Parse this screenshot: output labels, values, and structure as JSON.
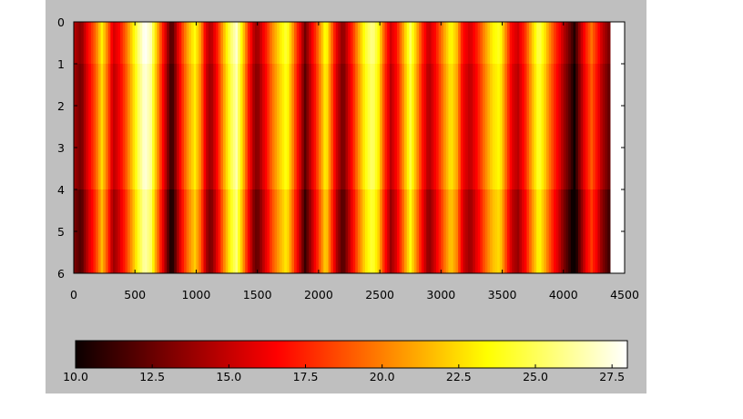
{
  "chart_data": {
    "type": "heatmap",
    "title": "",
    "xlabel": "",
    "ylabel": "",
    "xlim": [
      0,
      4500
    ],
    "ylim": [
      0,
      6
    ],
    "data_x_extent": [
      0,
      4380
    ],
    "x_ticks": [
      0,
      500,
      1000,
      1500,
      2000,
      2500,
      3000,
      3500,
      4000,
      4500
    ],
    "y_ticks": [
      0,
      1,
      2,
      3,
      4,
      5,
      6
    ],
    "y_inverted": true,
    "colormap": "hot",
    "color_range": [
      10.0,
      28.0
    ],
    "colorbar_ticks": [
      "10.0",
      "12.5",
      "15.0",
      "17.5",
      "20.0",
      "22.5",
      "25.0",
      "27.5"
    ],
    "colorbar_orientation": "horizontal",
    "colorbar_placement": "bottom",
    "row_bands": [
      {
        "from": 0,
        "to": 1,
        "offset": 0.6
      },
      {
        "from": 1,
        "to": 4,
        "offset": 0.0
      },
      {
        "from": 4,
        "to": 6,
        "offset": -0.9
      }
    ],
    "column_profile": [
      {
        "x": 0,
        "value": 14.0
      },
      {
        "x": 60,
        "value": 12.5
      },
      {
        "x": 120,
        "value": 16.0
      },
      {
        "x": 180,
        "value": 19.0
      },
      {
        "x": 230,
        "value": 22.5
      },
      {
        "x": 280,
        "value": 19.0
      },
      {
        "x": 320,
        "value": 14.5
      },
      {
        "x": 360,
        "value": 15.5
      },
      {
        "x": 420,
        "value": 18.5
      },
      {
        "x": 480,
        "value": 22.0
      },
      {
        "x": 530,
        "value": 25.0
      },
      {
        "x": 580,
        "value": 27.5
      },
      {
        "x": 630,
        "value": 26.0
      },
      {
        "x": 680,
        "value": 21.0
      },
      {
        "x": 730,
        "value": 16.5
      },
      {
        "x": 770,
        "value": 13.0
      },
      {
        "x": 800,
        "value": 10.8
      },
      {
        "x": 840,
        "value": 14.0
      },
      {
        "x": 890,
        "value": 18.0
      },
      {
        "x": 940,
        "value": 21.0
      },
      {
        "x": 990,
        "value": 23.0
      },
      {
        "x": 1040,
        "value": 20.0
      },
      {
        "x": 1080,
        "value": 15.0
      },
      {
        "x": 1120,
        "value": 13.5
      },
      {
        "x": 1170,
        "value": 16.5
      },
      {
        "x": 1220,
        "value": 20.5
      },
      {
        "x": 1280,
        "value": 24.5
      },
      {
        "x": 1330,
        "value": 26.5
      },
      {
        "x": 1380,
        "value": 22.0
      },
      {
        "x": 1430,
        "value": 17.0
      },
      {
        "x": 1470,
        "value": 14.0
      },
      {
        "x": 1500,
        "value": 13.0
      },
      {
        "x": 1560,
        "value": 16.0
      },
      {
        "x": 1620,
        "value": 19.5
      },
      {
        "x": 1680,
        "value": 22.0
      },
      {
        "x": 1740,
        "value": 24.0
      },
      {
        "x": 1790,
        "value": 20.0
      },
      {
        "x": 1840,
        "value": 16.0
      },
      {
        "x": 1890,
        "value": 12.0
      },
      {
        "x": 1940,
        "value": 15.0
      },
      {
        "x": 2000,
        "value": 19.0
      },
      {
        "x": 2060,
        "value": 23.5
      },
      {
        "x": 2100,
        "value": 19.5
      },
      {
        "x": 2150,
        "value": 15.0
      },
      {
        "x": 2200,
        "value": 12.5
      },
      {
        "x": 2260,
        "value": 16.0
      },
      {
        "x": 2320,
        "value": 20.0
      },
      {
        "x": 2380,
        "value": 23.5
      },
      {
        "x": 2440,
        "value": 25.5
      },
      {
        "x": 2490,
        "value": 23.0
      },
      {
        "x": 2540,
        "value": 18.0
      },
      {
        "x": 2590,
        "value": 14.5
      },
      {
        "x": 2640,
        "value": 16.5
      },
      {
        "x": 2700,
        "value": 21.0
      },
      {
        "x": 2750,
        "value": 24.5
      },
      {
        "x": 2800,
        "value": 21.0
      },
      {
        "x": 2850,
        "value": 17.0
      },
      {
        "x": 2900,
        "value": 14.0
      },
      {
        "x": 2960,
        "value": 16.5
      },
      {
        "x": 3020,
        "value": 20.0
      },
      {
        "x": 3080,
        "value": 23.0
      },
      {
        "x": 3130,
        "value": 21.0
      },
      {
        "x": 3180,
        "value": 16.0
      },
      {
        "x": 3240,
        "value": 14.5
      },
      {
        "x": 3300,
        "value": 17.0
      },
      {
        "x": 3360,
        "value": 20.0
      },
      {
        "x": 3420,
        "value": 22.5
      },
      {
        "x": 3480,
        "value": 23.5
      },
      {
        "x": 3530,
        "value": 19.5
      },
      {
        "x": 3580,
        "value": 15.5
      },
      {
        "x": 3630,
        "value": 14.5
      },
      {
        "x": 3690,
        "value": 17.5
      },
      {
        "x": 3740,
        "value": 21.0
      },
      {
        "x": 3800,
        "value": 24.5
      },
      {
        "x": 3850,
        "value": 22.0
      },
      {
        "x": 3900,
        "value": 19.0
      },
      {
        "x": 3950,
        "value": 16.5
      },
      {
        "x": 4000,
        "value": 14.0
      },
      {
        "x": 4060,
        "value": 11.5
      },
      {
        "x": 4090,
        "value": 10.0
      },
      {
        "x": 4130,
        "value": 13.0
      },
      {
        "x": 4180,
        "value": 16.5
      },
      {
        "x": 4230,
        "value": 19.0
      },
      {
        "x": 4270,
        "value": 17.0
      },
      {
        "x": 4310,
        "value": 14.5
      },
      {
        "x": 4350,
        "value": 13.0
      },
      {
        "x": 4380,
        "value": 12.0
      }
    ]
  }
}
